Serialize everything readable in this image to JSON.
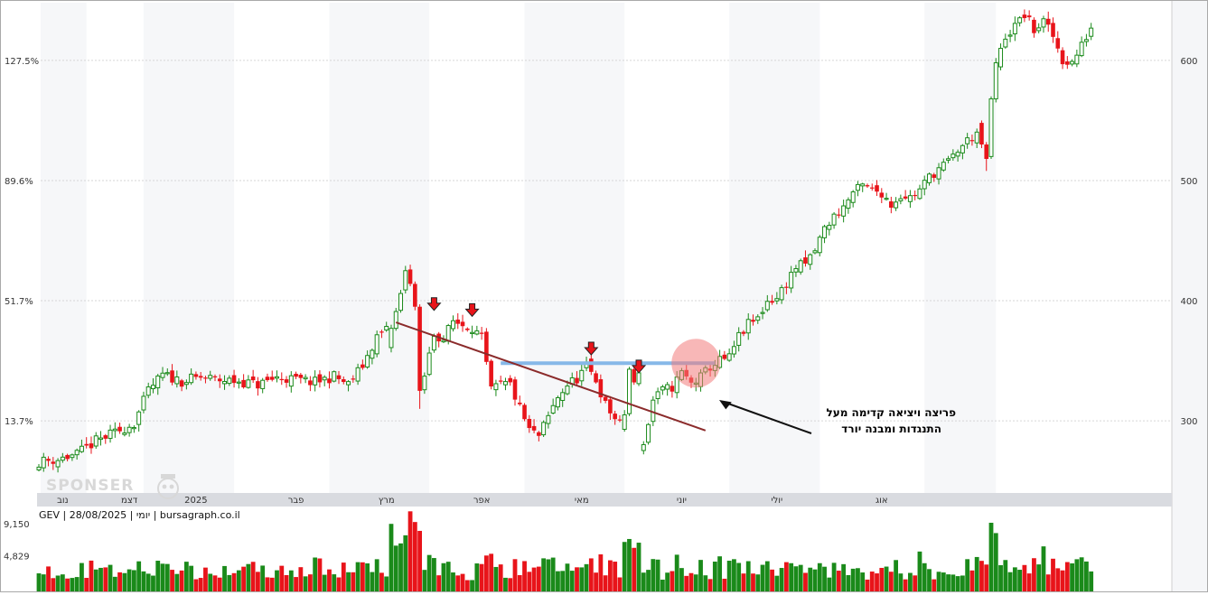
{
  "chart_data": {
    "type": "candlestick",
    "ticker_info": "GEV | 28/08/2025 | יומי | bursagraph.co.il",
    "watermark": "SPONSER",
    "price_axis": {
      "ticks": [
        300,
        400,
        500,
        600
      ],
      "ylim": [
        240,
        648
      ]
    },
    "percent_axis": {
      "ticks": [
        "13.7%",
        "51.7%",
        "89.6%",
        "127.5%"
      ]
    },
    "volume_axis": {
      "ticks": [
        "4,829",
        "9,150"
      ],
      "values": [
        4829,
        9150
      ]
    },
    "months": [
      {
        "label": "נוב",
        "index": 5
      },
      {
        "label": "דצמ",
        "index": 19
      },
      {
        "label": "2025",
        "index": 33
      },
      {
        "label": "פבר",
        "index": 54
      },
      {
        "label": "מרץ",
        "index": 73
      },
      {
        "label": "אפר",
        "index": 93
      },
      {
        "label": "מאי",
        "index": 114
      },
      {
        "label": "יוני",
        "index": 135
      },
      {
        "label": "יולי",
        "index": 155
      },
      {
        "label": "אוג",
        "index": 177
      }
    ],
    "shaded_bands": [
      [
        -1,
        10
      ],
      [
        22,
        41
      ],
      [
        61,
        82
      ],
      [
        102,
        123
      ],
      [
        145,
        164
      ],
      [
        186,
        201
      ]
    ],
    "anchors": [
      [
        0,
        266
      ],
      [
        4,
        268
      ],
      [
        8,
        272
      ],
      [
        12,
        283
      ],
      [
        16,
        290
      ],
      [
        20,
        298
      ],
      [
        23,
        325
      ],
      [
        26,
        338
      ],
      [
        30,
        333
      ],
      [
        34,
        336
      ],
      [
        38,
        334
      ],
      [
        42,
        333
      ],
      [
        46,
        330
      ],
      [
        50,
        336
      ],
      [
        54,
        334
      ],
      [
        58,
        332
      ],
      [
        62,
        337
      ],
      [
        65,
        330
      ],
      [
        68,
        346
      ],
      [
        71,
        370
      ],
      [
        74,
        378
      ],
      [
        75,
        393
      ],
      [
        76,
        408
      ],
      [
        77,
        425
      ],
      [
        78,
        418
      ],
      [
        80,
        320
      ],
      [
        83,
        372
      ],
      [
        85,
        368
      ],
      [
        87,
        383
      ],
      [
        89,
        380
      ],
      [
        91,
        378
      ],
      [
        93,
        368
      ],
      [
        95,
        325
      ],
      [
        97,
        330
      ],
      [
        99,
        330
      ],
      [
        101,
        310
      ],
      [
        103,
        292
      ],
      [
        105,
        287
      ],
      [
        107,
        303
      ],
      [
        109,
        320
      ],
      [
        111,
        330
      ],
      [
        113,
        335
      ],
      [
        115,
        345
      ],
      [
        117,
        334
      ],
      [
        119,
        313
      ],
      [
        121,
        302
      ],
      [
        123,
        292
      ],
      [
        125,
        279
      ],
      [
        127,
        280
      ],
      [
        129,
        317
      ],
      [
        131,
        325
      ],
      [
        133,
        328
      ],
      [
        135,
        340
      ],
      [
        137,
        331
      ],
      [
        139,
        336
      ],
      [
        141,
        345
      ],
      [
        143,
        350
      ],
      [
        145,
        352
      ],
      [
        147,
        370
      ],
      [
        149,
        380
      ],
      [
        151,
        385
      ],
      [
        153,
        400
      ],
      [
        155,
        402
      ],
      [
        157,
        415
      ],
      [
        159,
        428
      ],
      [
        161,
        430
      ],
      [
        163,
        442
      ],
      [
        165,
        460
      ],
      [
        167,
        470
      ],
      [
        169,
        478
      ],
      [
        171,
        490
      ],
      [
        173,
        495
      ],
      [
        175,
        492
      ],
      [
        177,
        490
      ],
      [
        179,
        480
      ],
      [
        181,
        488
      ],
      [
        183,
        486
      ],
      [
        185,
        492
      ],
      [
        187,
        503
      ],
      [
        189,
        510
      ],
      [
        191,
        515
      ],
      [
        193,
        525
      ],
      [
        195,
        533
      ],
      [
        197,
        540
      ],
      [
        198,
        545
      ],
      [
        199,
        525
      ],
      [
        200,
        560
      ],
      [
        201,
        595
      ],
      [
        203,
        620
      ],
      [
        205,
        628
      ],
      [
        207,
        638
      ],
      [
        209,
        625
      ],
      [
        211,
        632
      ],
      [
        213,
        620
      ],
      [
        215,
        600
      ],
      [
        217,
        598
      ],
      [
        219,
        612
      ],
      [
        221,
        628
      ]
    ],
    "overrides": {
      "74": [
        361,
        377,
        357,
        380
      ],
      "75": [
        377,
        391,
        375,
        394
      ],
      "76": [
        392,
        406,
        390,
        409
      ],
      "77": [
        409,
        425,
        406,
        429
      ],
      "78": [
        426,
        414,
        412,
        430
      ],
      "79": [
        414,
        395,
        392,
        416
      ],
      "80": [
        395,
        325,
        310,
        397
      ],
      "123": [
        293,
        305,
        291,
        309
      ],
      "124": [
        306,
        343,
        304,
        345
      ],
      "125": [
        343,
        332,
        330,
        347
      ],
      "126": [
        331,
        340,
        329,
        342
      ],
      "198": [
        548,
        530,
        527,
        550
      ],
      "199": [
        530,
        518,
        508,
        532
      ],
      "200": [
        520,
        568,
        518,
        570
      ],
      "201": [
        568,
        598,
        565,
        602
      ]
    },
    "volume_spikes": {
      "74": 9150,
      "75": 6200,
      "76": 6500,
      "77": 7600,
      "78": 10850,
      "79": 9400,
      "80": 8200,
      "123": 6700,
      "124": 7100,
      "125": 5900,
      "126": 6600,
      "185": 5400,
      "200": 9300,
      "201": 7900,
      "211": 6100
    },
    "trendline": {
      "from": [
        75,
        382
      ],
      "to": [
        140,
        292
      ]
    },
    "resistance": {
      "price": 348,
      "from": [
        97,
        142
      ]
    },
    "arrow_markers": [
      {
        "index": 83,
        "price": 392
      },
      {
        "index": 91,
        "price": 387
      },
      {
        "index": 116,
        "price": 355
      },
      {
        "index": 126,
        "price": 340
      }
    ],
    "breakout_circle": {
      "index": 138,
      "price": 348
    },
    "annotation": {
      "line1": "פריצה ויציאה קדימה מעל",
      "line2": "התנגדות ומבנה יורד"
    },
    "colors": {
      "up": "#1a8a1a",
      "down": "#e8141a",
      "trendline": "#8b2b2b",
      "resistance": "#86b8e8"
    }
  }
}
